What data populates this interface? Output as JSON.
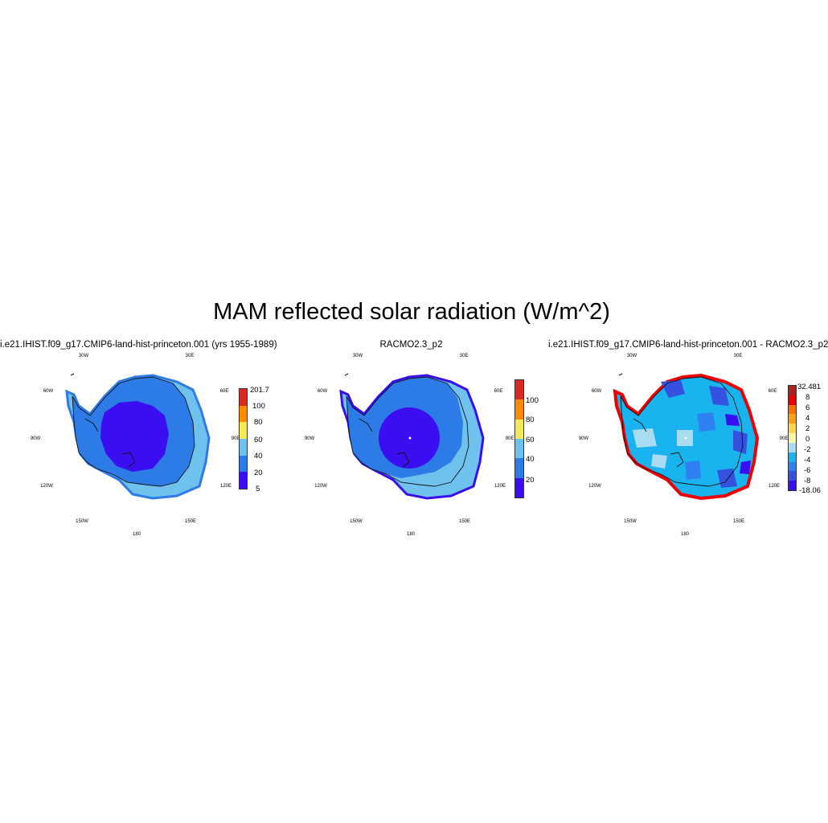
{
  "title": "MAM reflected solar radiation (W/m^2)",
  "lon_labels": [
    "30W",
    "30E",
    "60W",
    "60E",
    "90W",
    "90E",
    "120W",
    "120E",
    "150W",
    "150E",
    "180"
  ],
  "panels": [
    {
      "title": "i.e21.IHIST.f09_g17.CMIP6-land-hist-princeton.001 (yrs 1955-1989)",
      "colorbar": {
        "colors": [
          "#3a0ef0",
          "#2c7be6",
          "#6fc2ee",
          "#f5e95a",
          "#fb8b00",
          "#d62a22"
        ],
        "labels": [
          "5",
          "20",
          "40",
          "60",
          "80",
          "100",
          "201.7"
        ]
      }
    },
    {
      "title": "RACMO2.3_p2",
      "colorbar": {
        "colors": [
          "#3a0ef0",
          "#2c7be6",
          "#6fc2ee",
          "#f5e95a",
          "#fb8b00",
          "#d62a22"
        ],
        "labels": [
          "20",
          "40",
          "60",
          "80",
          "100"
        ]
      }
    },
    {
      "title": "i.e21.IHIST.f09_g17.CMIP6-land-hist-princeton.001 - RACMO2.3_p2",
      "colorbar": {
        "colors": [
          "#3a0ef0",
          "#3451e0",
          "#2f80f0",
          "#19b3ef",
          "#a9dcf2",
          "#fafaa6",
          "#fbd54a",
          "#fba00e",
          "#fb6f00",
          "#ee0000",
          "#b02020"
        ],
        "labels": [
          "-18.06",
          "-8",
          "-6",
          "-4",
          "-2",
          "0",
          "2",
          "4",
          "6",
          "8",
          "32.481"
        ]
      }
    }
  ]
}
